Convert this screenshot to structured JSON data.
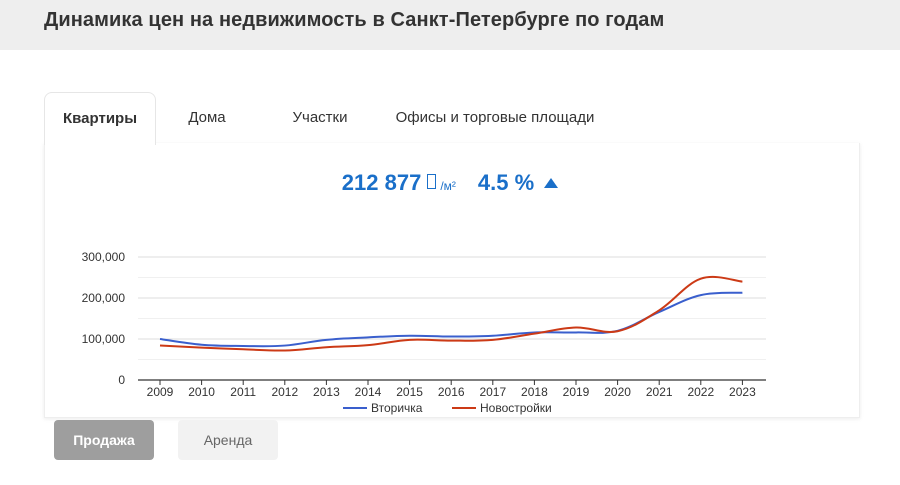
{
  "page": {
    "title": "Динамика цен на недвижимость в Санкт-Петербурге по годам"
  },
  "tabs": [
    {
      "label": "Квартиры",
      "active": true
    },
    {
      "label": "Дома",
      "active": false
    },
    {
      "label": "Участки",
      "active": false
    },
    {
      "label": "Офисы и торговые площади",
      "active": false
    }
  ],
  "summary": {
    "price": "212 877",
    "unit": "/м²",
    "change": "4.5 %",
    "color": "#1a6fc9",
    "currency_icon": "ruble-placeholder-icon",
    "trend_icon": "arrow-up-icon"
  },
  "chart_data": {
    "type": "line",
    "title": "",
    "xlabel": "",
    "ylabel": "",
    "x": [
      "2009",
      "2010",
      "2011",
      "2012",
      "2013",
      "2014",
      "2015",
      "2016",
      "2017",
      "2018",
      "2019",
      "2020",
      "2021",
      "2022",
      "2023"
    ],
    "y_ticks": [
      "0",
      "100,000",
      "200,000",
      "300,000"
    ],
    "ylim": [
      0,
      300000
    ],
    "grid": true,
    "legend_position": "bottom",
    "series": [
      {
        "name": "Вторичка",
        "color": "#3a5fcd",
        "values": [
          100000,
          86000,
          83000,
          84000,
          98000,
          104000,
          108000,
          106000,
          108000,
          116000,
          116000,
          120000,
          166000,
          207000,
          212877
        ]
      },
      {
        "name": "Новостройки",
        "color": "#cc3a16",
        "values": [
          84000,
          79000,
          75000,
          72000,
          80000,
          85000,
          98000,
          96000,
          98000,
          113000,
          128000,
          119000,
          170000,
          247000,
          240000
        ]
      }
    ]
  },
  "buttons": {
    "sale": "Продажа",
    "rent": "Аренда"
  }
}
